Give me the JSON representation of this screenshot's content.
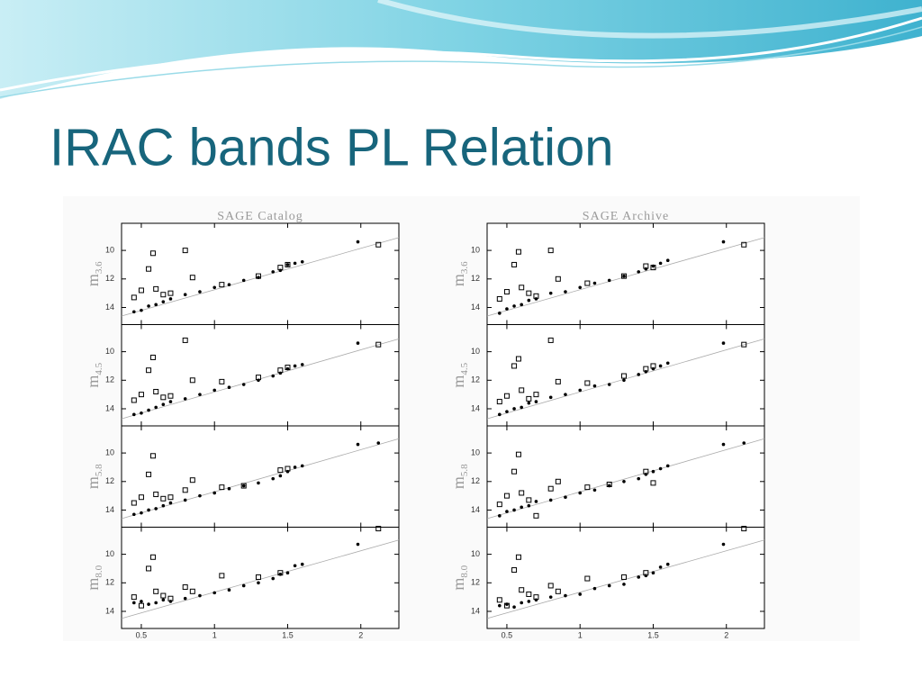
{
  "title": "IRAC bands PL Relation",
  "chart_data": [
    {
      "type": "scatter",
      "title": "SAGE Catalog",
      "xlim": [
        0.365,
        2.26
      ],
      "xticks": [
        0.5,
        1,
        1.5,
        2
      ],
      "panels": [
        {
          "ylabel": "m",
          "ylabel_sub": "3.6",
          "ylim": [
            15.2,
            8.1
          ],
          "yticks": [
            10,
            12,
            14
          ],
          "fit": {
            "x": [
              0.365,
              2.26
            ],
            "y": [
              14.6,
              9.1
            ]
          },
          "dots": {
            "x": [
              0.45,
              0.5,
              0.55,
              0.6,
              0.65,
              0.7,
              0.8,
              0.9,
              1.0,
              1.1,
              1.2,
              1.3,
              1.4,
              1.45,
              1.5,
              1.55,
              1.6,
              1.98
            ],
            "y": [
              14.3,
              14.2,
              13.9,
              13.8,
              13.6,
              13.4,
              13.1,
              12.9,
              12.6,
              12.4,
              12.1,
              11.9,
              11.5,
              11.4,
              11.0,
              10.9,
              10.8,
              9.4
            ]
          },
          "squares": {
            "x": [
              0.45,
              0.5,
              0.55,
              0.58,
              0.6,
              0.65,
              0.7,
              0.8,
              0.85,
              1.05,
              1.3,
              1.45,
              1.5,
              2.12
            ],
            "y": [
              13.3,
              12.8,
              11.3,
              10.2,
              12.7,
              13.1,
              13.0,
              10.0,
              11.9,
              12.4,
              11.8,
              11.2,
              11.0,
              9.6
            ]
          }
        },
        {
          "ylabel": "m",
          "ylabel_sub": "4.5",
          "ylim": [
            15.2,
            8.1
          ],
          "yticks": [
            10,
            12,
            14
          ],
          "fit": {
            "x": [
              0.365,
              2.26
            ],
            "y": [
              14.7,
              9.1
            ]
          },
          "dots": {
            "x": [
              0.45,
              0.5,
              0.55,
              0.6,
              0.65,
              0.7,
              0.8,
              0.9,
              1.0,
              1.1,
              1.2,
              1.3,
              1.4,
              1.45,
              1.5,
              1.55,
              1.6,
              1.98
            ],
            "y": [
              14.4,
              14.3,
              14.1,
              13.9,
              13.7,
              13.5,
              13.3,
              13.0,
              12.7,
              12.5,
              12.3,
              12.0,
              11.7,
              11.5,
              11.2,
              11.0,
              10.9,
              9.4
            ]
          },
          "squares": {
            "x": [
              0.45,
              0.5,
              0.55,
              0.58,
              0.6,
              0.65,
              0.7,
              0.8,
              0.85,
              1.05,
              1.3,
              1.45,
              1.5,
              2.12
            ],
            "y": [
              13.4,
              13.0,
              11.3,
              10.4,
              12.8,
              13.2,
              13.1,
              9.2,
              12.0,
              12.1,
              11.8,
              11.3,
              11.1,
              9.5
            ]
          }
        },
        {
          "ylabel": "m",
          "ylabel_sub": "5.8",
          "ylim": [
            15.2,
            8.1
          ],
          "yticks": [
            10,
            12,
            14
          ],
          "fit": {
            "x": [
              0.365,
              2.26
            ],
            "y": [
              14.6,
              9.0
            ]
          },
          "dots": {
            "x": [
              0.45,
              0.5,
              0.55,
              0.6,
              0.65,
              0.7,
              0.8,
              0.9,
              1.0,
              1.1,
              1.2,
              1.3,
              1.4,
              1.45,
              1.5,
              1.55,
              1.6,
              1.98,
              2.12
            ],
            "y": [
              14.3,
              14.2,
              14.0,
              13.9,
              13.7,
              13.5,
              13.3,
              13.0,
              12.8,
              12.5,
              12.3,
              12.1,
              11.8,
              11.6,
              11.3,
              11.0,
              10.9,
              9.4,
              9.3
            ]
          },
          "squares": {
            "x": [
              0.45,
              0.5,
              0.55,
              0.58,
              0.6,
              0.65,
              0.7,
              0.8,
              0.85,
              1.05,
              1.2,
              1.45,
              1.5
            ],
            "y": [
              13.5,
              13.1,
              11.5,
              10.2,
              12.9,
              13.2,
              13.1,
              12.6,
              11.9,
              12.4,
              12.3,
              11.2,
              11.1
            ]
          }
        },
        {
          "ylabel": "m",
          "ylabel_sub": "8.0",
          "ylim": [
            15.2,
            8.1
          ],
          "yticks": [
            10,
            12,
            14
          ],
          "fit": {
            "x": [
              0.365,
              2.26
            ],
            "y": [
              14.5,
              9.0
            ]
          },
          "dots": {
            "x": [
              0.45,
              0.5,
              0.55,
              0.6,
              0.65,
              0.7,
              0.8,
              0.9,
              1.0,
              1.1,
              1.2,
              1.3,
              1.4,
              1.45,
              1.5,
              1.55,
              1.6,
              1.98
            ],
            "y": [
              13.4,
              13.3,
              13.5,
              13.4,
              13.2,
              13.3,
              13.1,
              12.9,
              12.7,
              12.5,
              12.2,
              12.0,
              11.7,
              11.4,
              11.3,
              10.8,
              10.7,
              9.3
            ]
          },
          "squares": {
            "x": [
              0.45,
              0.5,
              0.55,
              0.58,
              0.6,
              0.65,
              0.7,
              0.8,
              0.85,
              1.05,
              1.3,
              1.45,
              2.12
            ],
            "y": [
              13.0,
              13.6,
              11.0,
              10.2,
              12.6,
              12.9,
              13.1,
              12.3,
              12.6,
              11.5,
              11.6,
              11.3,
              8.2
            ]
          }
        }
      ]
    },
    {
      "type": "scatter",
      "title": "SAGE Archive",
      "xlim": [
        0.365,
        2.26
      ],
      "xticks": [
        0.5,
        1,
        1.5,
        2
      ],
      "panels": [
        {
          "ylabel": "m",
          "ylabel_sub": "3.6",
          "ylim": [
            15.2,
            8.1
          ],
          "yticks": [
            10,
            12,
            14
          ],
          "fit": {
            "x": [
              0.365,
              2.26
            ],
            "y": [
              14.6,
              9.1
            ]
          },
          "dots": {
            "x": [
              0.45,
              0.5,
              0.55,
              0.6,
              0.65,
              0.7,
              0.8,
              0.9,
              1.0,
              1.1,
              1.2,
              1.3,
              1.4,
              1.45,
              1.5,
              1.55,
              1.6,
              1.98
            ],
            "y": [
              14.4,
              14.1,
              13.9,
              13.8,
              13.5,
              13.4,
              13.0,
              12.9,
              12.6,
              12.3,
              12.1,
              11.8,
              11.5,
              11.3,
              11.1,
              10.9,
              10.7,
              9.4
            ]
          },
          "squares": {
            "x": [
              0.45,
              0.5,
              0.55,
              0.58,
              0.6,
              0.65,
              0.7,
              0.8,
              0.85,
              1.05,
              1.3,
              1.45,
              1.5,
              2.12
            ],
            "y": [
              13.4,
              12.9,
              11.0,
              10.1,
              12.6,
              13.0,
              13.2,
              10.0,
              12.0,
              12.3,
              11.8,
              11.1,
              11.2,
              9.6
            ]
          }
        },
        {
          "ylabel": "m",
          "ylabel_sub": "4.5",
          "ylim": [
            15.2,
            8.1
          ],
          "yticks": [
            10,
            12,
            14
          ],
          "fit": {
            "x": [
              0.365,
              2.26
            ],
            "y": [
              14.7,
              9.1
            ]
          },
          "dots": {
            "x": [
              0.45,
              0.5,
              0.55,
              0.6,
              0.65,
              0.7,
              0.8,
              0.9,
              1.0,
              1.1,
              1.2,
              1.3,
              1.4,
              1.45,
              1.5,
              1.55,
              1.6,
              1.98
            ],
            "y": [
              14.4,
              14.2,
              14.0,
              13.9,
              13.6,
              13.5,
              13.2,
              13.0,
              12.7,
              12.4,
              12.3,
              12.0,
              11.6,
              11.4,
              11.2,
              11.0,
              10.8,
              9.4
            ]
          },
          "squares": {
            "x": [
              0.45,
              0.5,
              0.55,
              0.58,
              0.6,
              0.65,
              0.7,
              0.8,
              0.85,
              1.05,
              1.3,
              1.45,
              1.5,
              2.12
            ],
            "y": [
              13.5,
              13.1,
              11.0,
              10.5,
              12.7,
              13.3,
              13.0,
              9.2,
              12.1,
              12.2,
              11.7,
              11.2,
              11.0,
              9.5
            ]
          }
        },
        {
          "ylabel": "m",
          "ylabel_sub": "5.8",
          "ylim": [
            15.2,
            8.1
          ],
          "yticks": [
            10,
            12,
            14
          ],
          "fit": {
            "x": [
              0.365,
              2.26
            ],
            "y": [
              14.6,
              9.0
            ]
          },
          "dots": {
            "x": [
              0.45,
              0.5,
              0.55,
              0.6,
              0.65,
              0.7,
              0.8,
              0.9,
              1.0,
              1.1,
              1.2,
              1.3,
              1.4,
              1.45,
              1.5,
              1.55,
              1.6,
              1.98,
              2.12
            ],
            "y": [
              14.4,
              14.1,
              14.0,
              13.8,
              13.7,
              13.4,
              13.3,
              13.1,
              12.8,
              12.6,
              12.3,
              12.0,
              11.8,
              11.5,
              11.3,
              11.1,
              10.9,
              9.4,
              9.3
            ]
          },
          "squares": {
            "x": [
              0.45,
              0.5,
              0.55,
              0.58,
              0.6,
              0.65,
              0.7,
              0.8,
              0.85,
              1.05,
              1.2,
              1.45,
              1.5
            ],
            "y": [
              13.6,
              13.0,
              11.3,
              10.1,
              12.8,
              13.3,
              14.4,
              12.5,
              12.0,
              12.4,
              12.2,
              11.3,
              12.1
            ]
          }
        },
        {
          "ylabel": "m",
          "ylabel_sub": "8.0",
          "ylim": [
            15.2,
            8.1
          ],
          "yticks": [
            10,
            12,
            14
          ],
          "fit": {
            "x": [
              0.365,
              2.26
            ],
            "y": [
              14.5,
              9.0
            ]
          },
          "dots": {
            "x": [
              0.45,
              0.5,
              0.55,
              0.6,
              0.65,
              0.7,
              0.8,
              0.9,
              1.0,
              1.1,
              1.2,
              1.3,
              1.4,
              1.45,
              1.5,
              1.55,
              1.6,
              1.98
            ],
            "y": [
              13.6,
              13.5,
              13.7,
              13.4,
              13.3,
              13.2,
              13.0,
              12.9,
              12.8,
              12.4,
              12.2,
              12.1,
              11.6,
              11.5,
              11.3,
              10.9,
              10.7,
              9.3
            ]
          },
          "squares": {
            "x": [
              0.45,
              0.5,
              0.55,
              0.58,
              0.6,
              0.65,
              0.7,
              0.8,
              0.85,
              1.05,
              1.3,
              1.45,
              2.12
            ],
            "y": [
              13.2,
              13.6,
              11.1,
              10.2,
              12.5,
              12.8,
              13.0,
              12.2,
              12.6,
              11.7,
              11.6,
              11.3,
              8.2
            ]
          }
        }
      ]
    }
  ]
}
